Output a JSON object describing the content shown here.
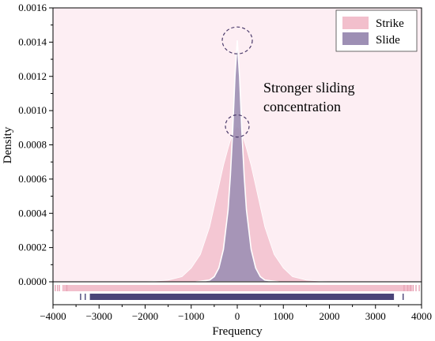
{
  "chart_data": {
    "type": "area",
    "xlabel": "Frequency",
    "ylabel": "Density",
    "xlim": [
      -4000,
      4000
    ],
    "ylim": [
      0,
      0.0016
    ],
    "x_ticks": [
      -4000,
      -3000,
      -2000,
      -1000,
      0,
      1000,
      2000,
      3000,
      4000
    ],
    "x_tick_labels": [
      "−4000",
      "−3000",
      "−2000",
      "−1000",
      "0",
      "1000",
      "2000",
      "3000",
      "4000"
    ],
    "y_ticks": [
      0,
      0.0002,
      0.0004,
      0.0006,
      0.0008,
      0.001,
      0.0012,
      0.0014,
      0.0016
    ],
    "y_tick_labels": [
      "0.0000",
      "0.0002",
      "0.0004",
      "0.0006",
      "0.0008",
      "0.0010",
      "0.0012",
      "0.0014",
      "0.0016"
    ],
    "legend_position": "top-right",
    "annotation": [
      "Stronger sliding",
      "concentration"
    ],
    "series": [
      {
        "name": "Strike",
        "color": "#f2bfcc",
        "peak": {
          "x": 0,
          "y": 0.00091
        },
        "x": [
          -2000,
          -1500,
          -1200,
          -1000,
          -800,
          -600,
          -400,
          -300,
          -200,
          -100,
          0,
          100,
          200,
          300,
          400,
          600,
          800,
          1000,
          1200,
          1500,
          2000
        ],
        "y": [
          0.0,
          1e-05,
          3e-05,
          8e-05,
          0.00016,
          0.00032,
          0.00056,
          0.00068,
          0.00078,
          0.00087,
          0.00091,
          0.00087,
          0.00078,
          0.00068,
          0.00056,
          0.00032,
          0.00016,
          8e-05,
          3e-05,
          1e-05,
          0.0
        ],
        "rug_range": [
          -3800,
          3800
        ]
      },
      {
        "name": "Slide",
        "color": "#9d8fb4",
        "peak": {
          "x": 0,
          "y": 0.00141
        },
        "x": [
          -900,
          -600,
          -500,
          -400,
          -300,
          -200,
          -150,
          -100,
          -50,
          0,
          50,
          100,
          150,
          200,
          300,
          400,
          500,
          600,
          900
        ],
        "y": [
          0.0,
          1e-05,
          3e-05,
          8e-05,
          0.00019,
          0.00042,
          0.00062,
          0.00088,
          0.0012,
          0.00141,
          0.0012,
          0.00088,
          0.00062,
          0.00042,
          0.00019,
          8e-05,
          3e-05,
          1e-05,
          0.0
        ],
        "rug_range": [
          -3200,
          3400
        ]
      }
    ]
  }
}
